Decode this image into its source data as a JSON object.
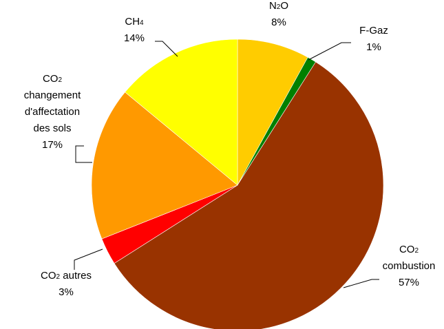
{
  "chart_data": {
    "type": "pie",
    "slices": [
      {
        "key": "n2o",
        "value": 8,
        "pct_label": "8%",
        "color": "#FFCC00",
        "label": [
          [
            {
              "t": "N"
            },
            {
              "t": "2",
              "sub": true
            },
            {
              "t": "O"
            }
          ]
        ]
      },
      {
        "key": "fgaz",
        "value": 1,
        "pct_label": "1%",
        "color": "#008000",
        "label": [
          [
            {
              "t": "F-Gaz"
            }
          ]
        ]
      },
      {
        "key": "co2comb",
        "value": 57,
        "pct_label": "57%",
        "color": "#993300",
        "label": [
          [
            {
              "t": "CO"
            },
            {
              "t": "2",
              "sub": true
            }
          ],
          [
            {
              "t": "combustion"
            }
          ]
        ]
      },
      {
        "key": "co2autres",
        "value": 3,
        "pct_label": "3%",
        "color": "#FF0000",
        "label": [
          [
            {
              "t": "CO"
            },
            {
              "t": "2",
              "sub": true
            },
            {
              "t": " autres"
            }
          ]
        ]
      },
      {
        "key": "co2sols",
        "value": 17,
        "pct_label": "17%",
        "color": "#FF9900",
        "label": [
          [
            {
              "t": "CO"
            },
            {
              "t": "2",
              "sub": true
            }
          ],
          [
            {
              "t": "changement"
            }
          ],
          [
            {
              "t": "d'affectation"
            }
          ],
          [
            {
              "t": "des sols"
            }
          ]
        ]
      },
      {
        "key": "ch4",
        "value": 14,
        "pct_label": "14%",
        "color": "#FFFF00",
        "label": [
          [
            {
              "t": "CH"
            },
            {
              "t": "4",
              "sub": true
            }
          ]
        ]
      }
    ]
  }
}
